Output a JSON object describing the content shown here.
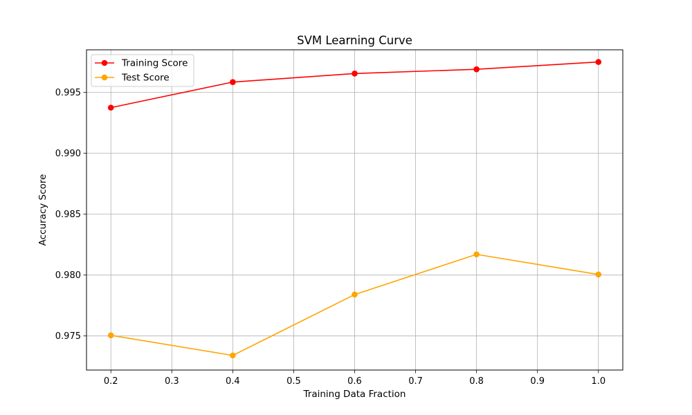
{
  "chart_data": {
    "type": "line",
    "title": "SVM Learning Curve",
    "xlabel": "Training Data Fraction",
    "ylabel": "Accuracy Score",
    "xlim": [
      0.16,
      1.04
    ],
    "ylim": [
      0.9722,
      0.9985
    ],
    "xticks": [
      0.2,
      0.3,
      0.4,
      0.5,
      0.6,
      0.7,
      0.8,
      0.9,
      1.0
    ],
    "xtick_labels": [
      "0.2",
      "0.3",
      "0.4",
      "0.5",
      "0.6",
      "0.7",
      "0.8",
      "0.9",
      "1.0"
    ],
    "yticks": [
      0.975,
      0.98,
      0.985,
      0.99,
      0.995
    ],
    "ytick_labels": [
      "0.975",
      "0.980",
      "0.985",
      "0.990",
      "0.995"
    ],
    "grid": true,
    "legend_position": "top-left",
    "x": [
      0.2,
      0.4,
      0.6,
      0.8,
      1.0
    ],
    "series": [
      {
        "name": "Training Score",
        "color": "#ff0000",
        "values": [
          0.99375,
          0.99585,
          0.99655,
          0.9969,
          0.9975
        ]
      },
      {
        "name": "Test Score",
        "color": "#ffa500",
        "values": [
          0.97505,
          0.9734,
          0.9784,
          0.9817,
          0.98005
        ]
      }
    ]
  }
}
